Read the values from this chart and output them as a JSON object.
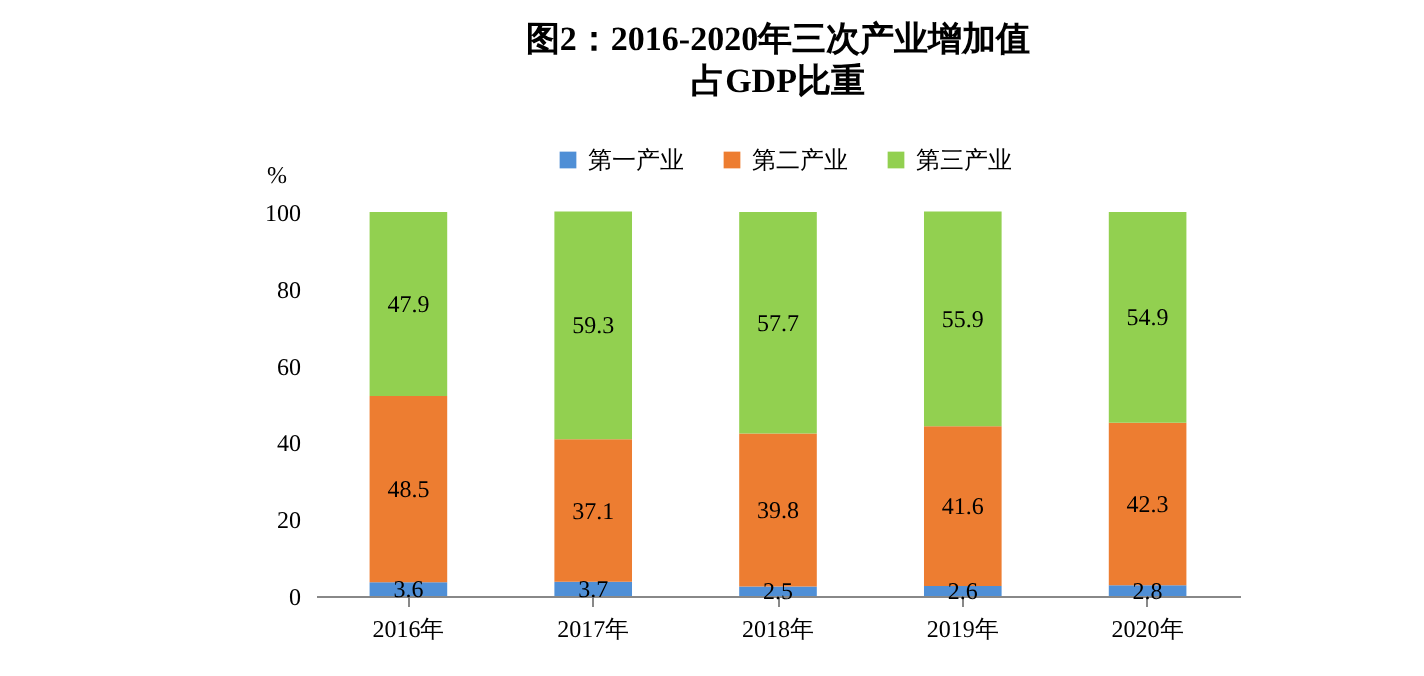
{
  "chart_data": {
    "type": "bar",
    "title": "图2：2016-2020年三次产业增加值",
    "subtitle": "占GDP比重",
    "ylabel": "%",
    "categories": [
      "2016年",
      "2017年",
      "2018年",
      "2019年",
      "2020年"
    ],
    "stacked": true,
    "data_labels": true,
    "legend": "top",
    "ylim": [
      0,
      100
    ],
    "yticks": [
      0,
      20,
      40,
      60,
      80,
      100
    ],
    "series": [
      {
        "name": "第一产业",
        "color": "#4f8fd6",
        "values": [
          3.6,
          3.7,
          2.5,
          2.6,
          2.8
        ]
      },
      {
        "name": "第二产业",
        "color": "#ed7d31",
        "values": [
          48.5,
          37.1,
          39.8,
          41.6,
          42.3
        ]
      },
      {
        "name": "第三产业",
        "color": "#92d050",
        "values": [
          47.9,
          59.3,
          57.7,
          55.9,
          54.9
        ]
      }
    ]
  }
}
